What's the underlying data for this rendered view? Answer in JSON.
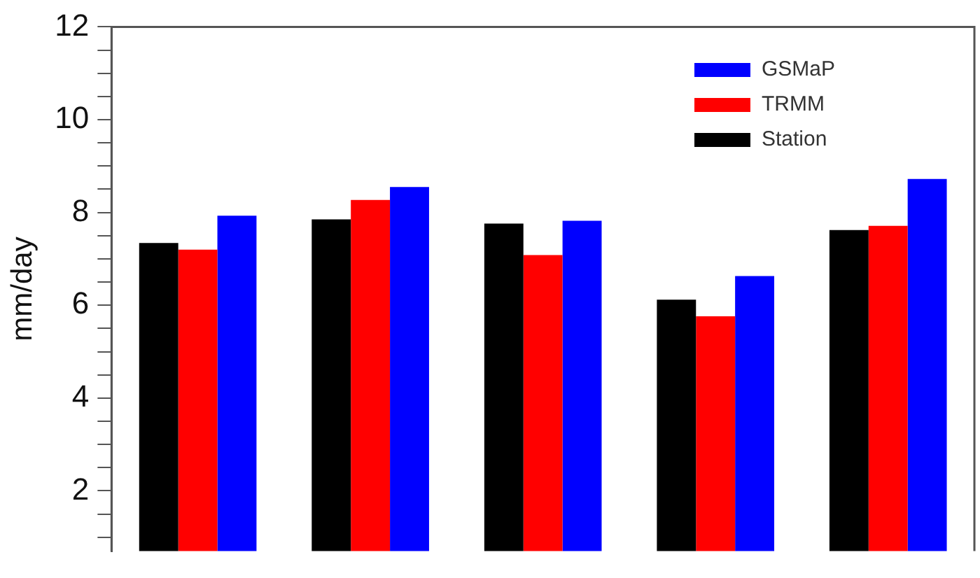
{
  "chart_data": {
    "type": "bar",
    "ylabel": "mm/day",
    "categories": [
      null,
      null,
      null,
      null,
      null
    ],
    "series": [
      {
        "name": "Station",
        "color": "#000000",
        "values": [
          7.34,
          7.85,
          7.76,
          6.12,
          7.62
        ]
      },
      {
        "name": "TRMM",
        "color": "#ff0000",
        "values": [
          7.2,
          8.27,
          7.08,
          5.76,
          7.71
        ]
      },
      {
        "name": "GSMaP",
        "color": "#0000ff",
        "values": [
          7.93,
          8.55,
          7.82,
          6.63,
          8.72
        ]
      }
    ],
    "ylim": [
      0.7,
      12
    ],
    "yticks": [
      {
        "value": 1,
        "label": null
      },
      {
        "value": 1.5,
        "label": null
      },
      2,
      {
        "value": 2.5,
        "label": null
      },
      {
        "value": 3,
        "label": null
      },
      {
        "value": 3.5,
        "label": null
      },
      4,
      {
        "value": 4.5,
        "label": null
      },
      {
        "value": 5,
        "label": null
      },
      {
        "value": 5.5,
        "label": null
      },
      6,
      {
        "value": 6.5,
        "label": null
      },
      {
        "value": 7,
        "label": null
      },
      {
        "value": 7.5,
        "label": null
      },
      8,
      {
        "value": 8.5,
        "label": null
      },
      {
        "value": 9,
        "label": null
      },
      {
        "value": 9.5,
        "label": null
      },
      10,
      {
        "value": 10.5,
        "label": null
      },
      {
        "value": 11,
        "label": null
      },
      {
        "value": 11.5,
        "label": null
      },
      12
    ],
    "grid": false,
    "legend": "top right",
    "tick_labels": "y"
  }
}
